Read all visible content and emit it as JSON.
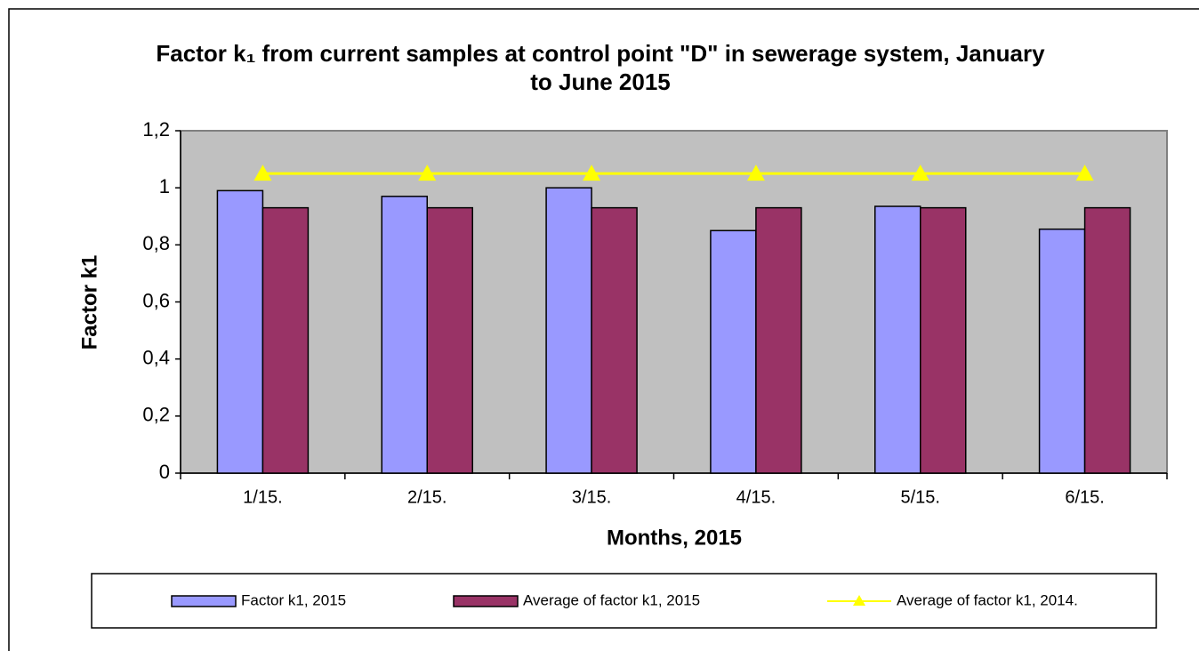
{
  "chart_data": {
    "type": "bar",
    "title": "Factor k₁ from current samples at control point \"D\" in sewerage system, January to June 2015",
    "xlabel": "Months, 2015",
    "ylabel": "Factor k1",
    "categories": [
      "1/15.",
      "2/15.",
      "3/15.",
      "4/15.",
      "5/15.",
      "6/15."
    ],
    "series": [
      {
        "name": "Factor k1, 2015",
        "color": "#9999ff",
        "type": "bar",
        "values": [
          0.99,
          0.97,
          1.0,
          0.85,
          0.935,
          0.855
        ]
      },
      {
        "name": "Average of factor k1, 2015",
        "color": "#993366",
        "type": "bar",
        "values": [
          0.93,
          0.93,
          0.93,
          0.93,
          0.93,
          0.93
        ]
      },
      {
        "name": "Average of factor k1, 2014.",
        "color": "#ffff00",
        "type": "line",
        "values": [
          1.05,
          1.05,
          1.05,
          1.05,
          1.05,
          1.05
        ]
      }
    ],
    "ylim": [
      0,
      1.2
    ],
    "yticks": [
      0,
      {
        "value": 0.2,
        "label": "0,2"
      },
      {
        "value": 0.4,
        "label": "0,4"
      },
      {
        "value": 0.6,
        "label": "0,6"
      },
      {
        "value": 0.8,
        "label": "0,8"
      },
      1,
      {
        "value": 1.2,
        "label": "1,2"
      }
    ],
    "legend": "bottom"
  }
}
